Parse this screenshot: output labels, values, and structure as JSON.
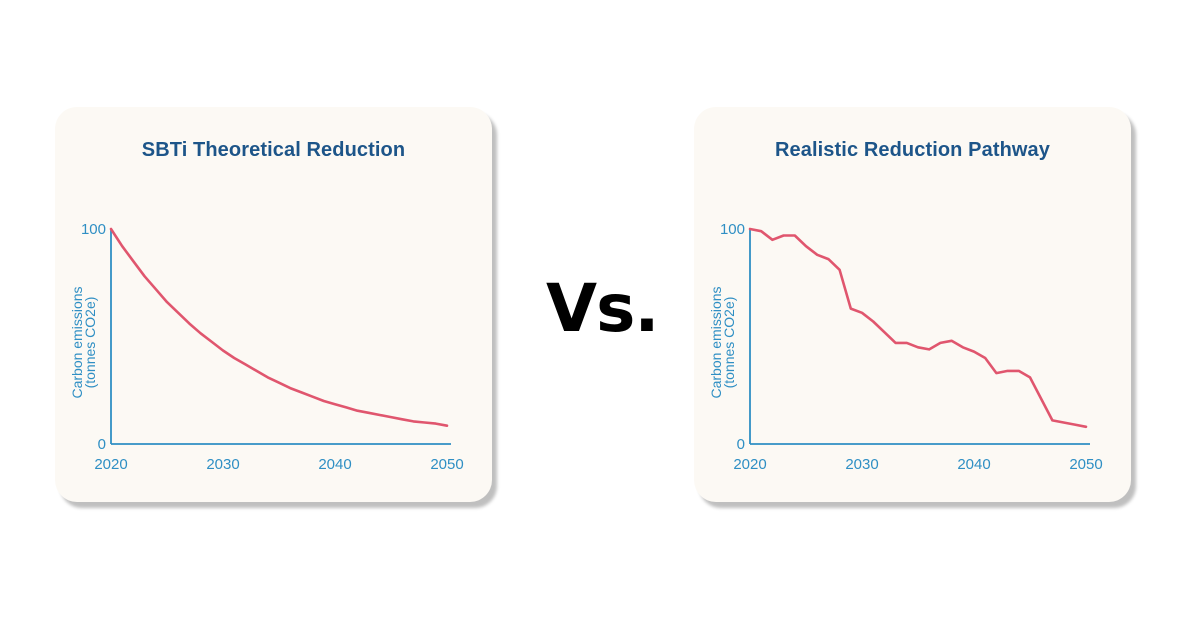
{
  "vs_label": "Vs.",
  "colors": {
    "axis": "#2f8fc4",
    "line": "#e0566e",
    "title": "#1d5589",
    "card": "#fcf9f4"
  },
  "chart_data": [
    {
      "type": "line",
      "title": "SBTi Theoretical Reduction",
      "ylabel": [
        "Carbon emissions",
        "(tonnes CO2e)"
      ],
      "xlabel": "",
      "xlim": [
        2020,
        2050
      ],
      "ylim": [
        0,
        100
      ],
      "x_ticks": [
        "2020",
        "2030",
        "2040",
        "2050"
      ],
      "y_ticks": [
        "0",
        "100"
      ],
      "grid": false,
      "series": [
        {
          "x": [
            2020,
            2021,
            2022,
            2023,
            2024,
            2025,
            2026,
            2027,
            2028,
            2029,
            2030,
            2031,
            2032,
            2033,
            2034,
            2035,
            2036,
            2037,
            2038,
            2039,
            2040,
            2041,
            2042,
            2043,
            2044,
            2045,
            2046,
            2047,
            2048,
            2049,
            2050
          ],
          "values": [
            100,
            92,
            85,
            78,
            72,
            66,
            61,
            56,
            51.5,
            47.5,
            43.5,
            40,
            37,
            34,
            31,
            28.5,
            26,
            24,
            22,
            20,
            18.5,
            17,
            15.5,
            14.5,
            13.5,
            12.5,
            11.5,
            10.5,
            10,
            9.5,
            8.5
          ]
        }
      ]
    },
    {
      "type": "line",
      "title": "Realistic Reduction Pathway",
      "ylabel": [
        "Carbon emissions",
        "(tonnes CO2e)"
      ],
      "xlabel": "",
      "xlim": [
        2020,
        2050
      ],
      "ylim": [
        0,
        100
      ],
      "x_ticks": [
        "2020",
        "2030",
        "2040",
        "2050"
      ],
      "y_ticks": [
        "0",
        "100"
      ],
      "grid": false,
      "series": [
        {
          "x": [
            2020,
            2021,
            2022,
            2023,
            2024,
            2025,
            2026,
            2027,
            2028,
            2029,
            2030,
            2031,
            2032,
            2033,
            2034,
            2035,
            2036,
            2037,
            2038,
            2039,
            2040,
            2041,
            2042,
            2043,
            2044,
            2045,
            2046,
            2047,
            2048,
            2049,
            2050
          ],
          "values": [
            100,
            99,
            95,
            97,
            97,
            92,
            88,
            86,
            81,
            63,
            61,
            57,
            52,
            47,
            47,
            45,
            44,
            47,
            48,
            45,
            43,
            40,
            33,
            34,
            34,
            31,
            21,
            11,
            10,
            9,
            8
          ]
        }
      ]
    }
  ]
}
